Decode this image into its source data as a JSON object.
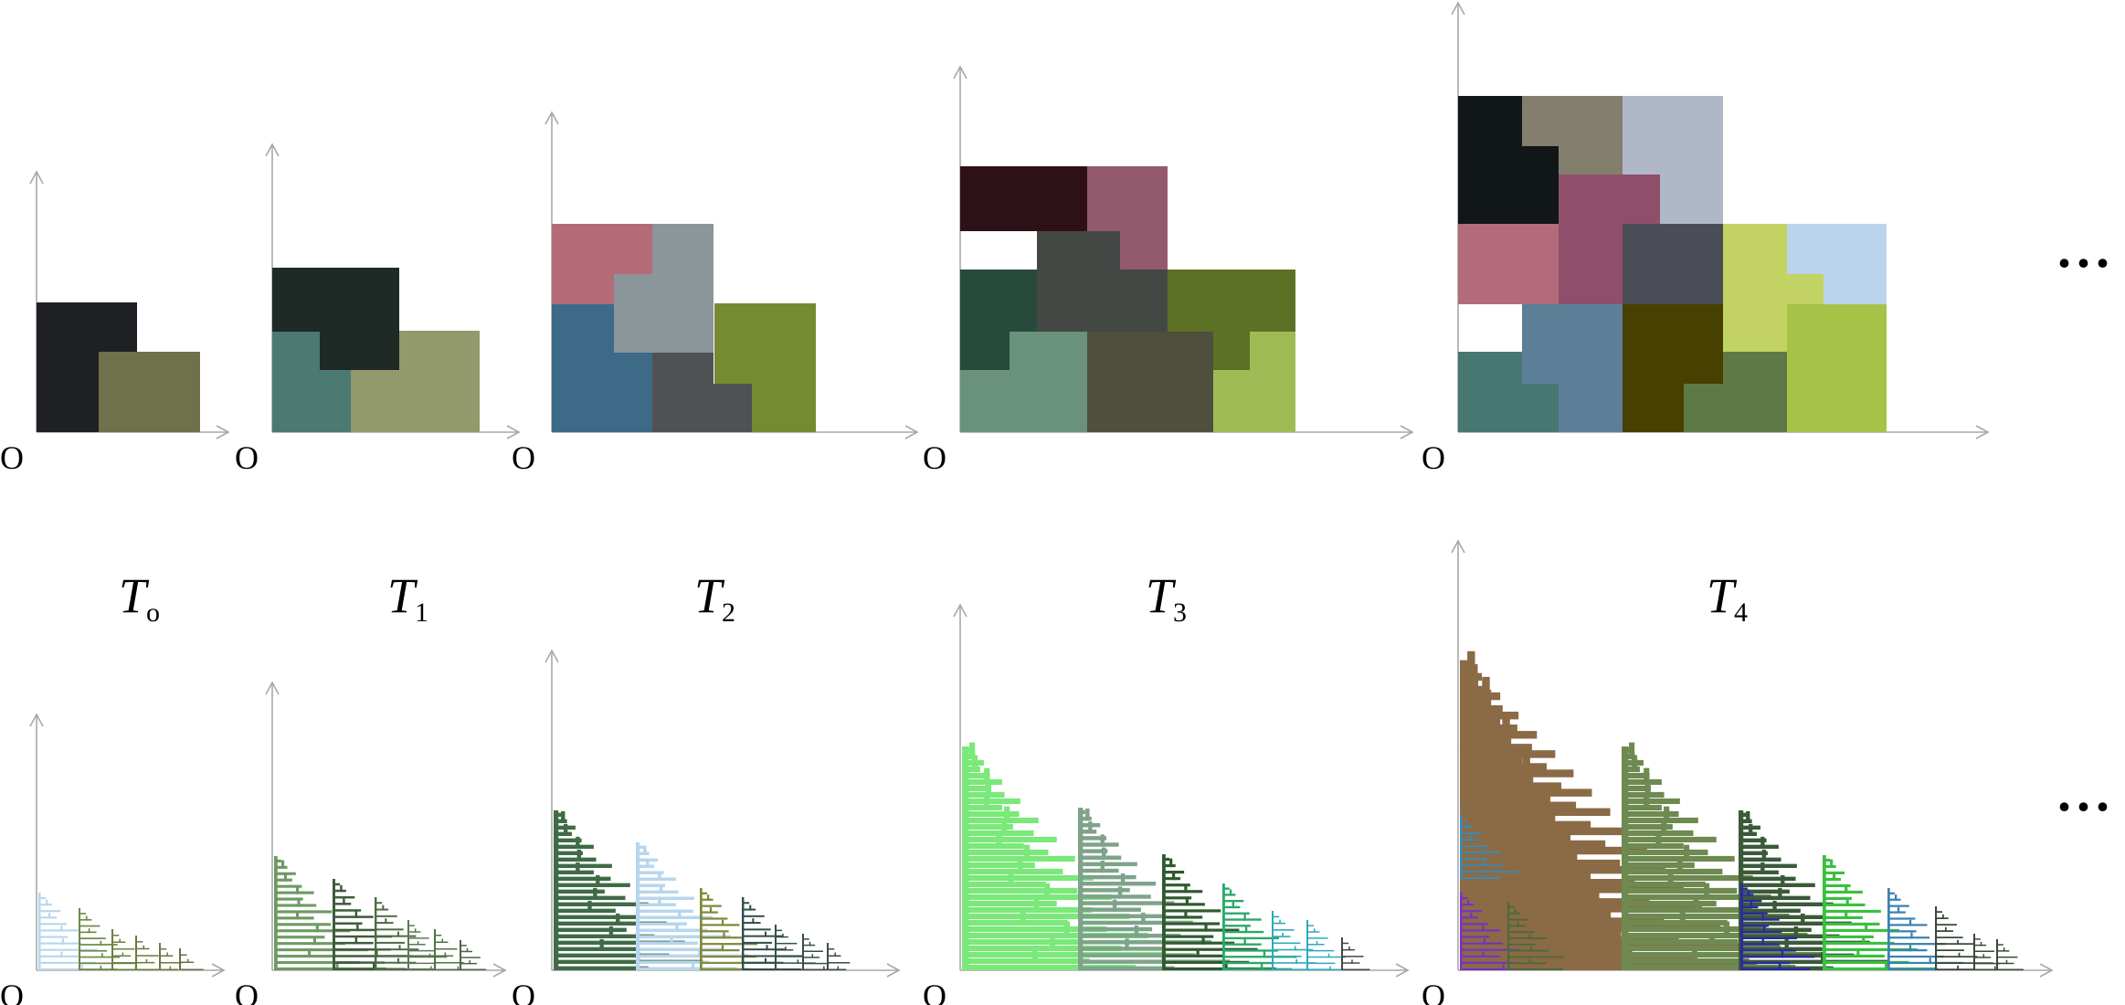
{
  "origin_label": "O",
  "ellipsis": "...",
  "stages": [
    {
      "name": "T",
      "sub": "o"
    },
    {
      "name": "T",
      "sub": "1"
    },
    {
      "name": "T",
      "sub": "2"
    },
    {
      "name": "T",
      "sub": "3"
    },
    {
      "name": "T",
      "sub": "4"
    }
  ],
  "tile_colors": {
    "t0": [
      "#1f2024",
      "#6e714a"
    ],
    "t1": [
      "#1f2925",
      "#4a7a72",
      "#92996b"
    ],
    "t2": [
      "#b36b78",
      "#8a969a",
      "#3d6a86",
      "#768a32",
      "#4f5154"
    ],
    "t3": [
      "#2e1017",
      "#935a6d",
      "#274a3c",
      "#434845",
      "#5c7125",
      "#6a917b",
      "#4e503d",
      "#a0bb55"
    ],
    "t4": [
      "#111619",
      "#847e6d",
      "#b0b8c8",
      "#8f4f6b",
      "#b36b7b",
      "#4b4d56",
      "#c2d363",
      "#bad4ee",
      "#467770",
      "#5c7f97",
      "#474000",
      "#5d7a46",
      "#a6c247"
    ]
  },
  "tree_colors": {
    "t0": [
      "#b7d6ee",
      "#6b8a46",
      "#6e7f42",
      "#6a7a40",
      "#6a7a44",
      "#667244"
    ],
    "t1": [
      "#6e9a62",
      "#3e5c3a",
      "#4f6b44",
      "#5a7a54",
      "#50704a",
      "#4a6446"
    ],
    "t2": [
      "#3f6b46",
      "#b7d6ee",
      "#7f8a3a",
      "#2f4d48",
      "#34504a",
      "#3a4e44"
    ],
    "t3": [
      "#7be87a",
      "#7ea38a",
      "#2f5a2e",
      "#2aa86a",
      "#30a8c0",
      "#404a40"
    ],
    "t4": [
      "#8a6b46",
      "#3a8abb",
      "#7a30c0",
      "#4e6a36",
      "#6e8a50",
      "#3a5a3a",
      "#2a2aa0",
      "#3ac040",
      "#3a82b0",
      "#3a4a38"
    ]
  }
}
